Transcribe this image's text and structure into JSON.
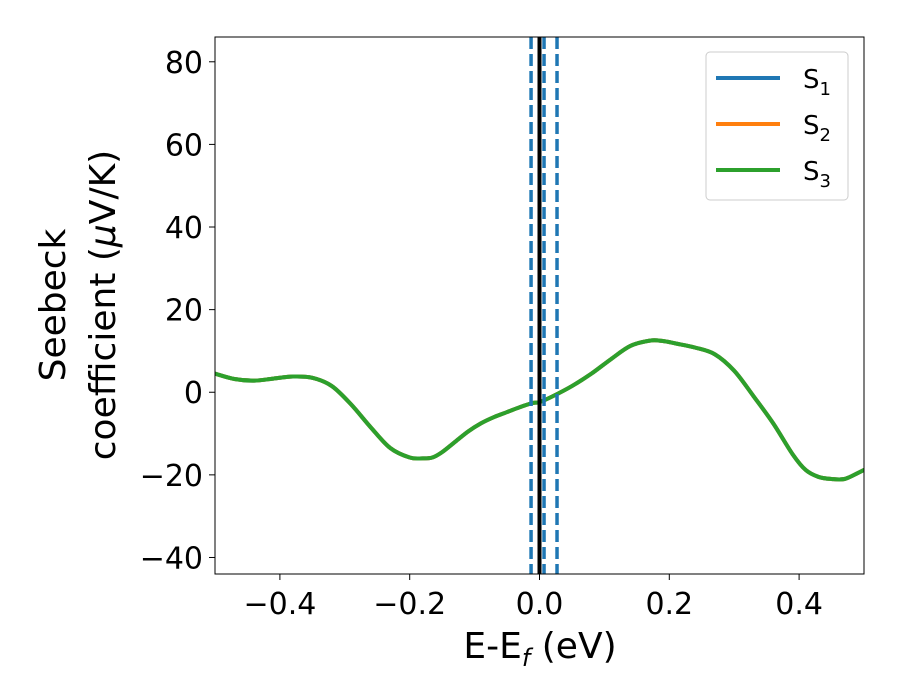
{
  "chart_data": {
    "type": "line",
    "xlabel_main": "E-E",
    "xlabel_sub": "f",
    "xlabel_unit": " (eV)",
    "ylabel_line1": "Seebeck",
    "ylabel_line2_text": "coefficient  (",
    "ylabel_mu": "μ",
    "ylabel_line2_unit": "V/K)",
    "xlim": [
      -0.5,
      0.5
    ],
    "ylim": [
      -44,
      86
    ],
    "xticks": [
      -0.4,
      -0.2,
      0.0,
      0.2,
      0.4
    ],
    "xtick_labels": [
      "−0.4",
      "−0.2",
      "0.0",
      "0.2",
      "0.4"
    ],
    "yticks": [
      -40,
      -20,
      0,
      20,
      40,
      60,
      80
    ],
    "ytick_labels": [
      "−40",
      "−20",
      "0",
      "20",
      "40",
      "60",
      "80"
    ],
    "grid": false,
    "legend_position": "top-right",
    "series": [
      {
        "name": "S",
        "sub": "1",
        "color": "#1f77b4",
        "x": [
          -0.5,
          -0.47,
          -0.44,
          -0.41,
          -0.38,
          -0.35,
          -0.32,
          -0.29,
          -0.26,
          -0.23,
          -0.2,
          -0.18,
          -0.165,
          -0.15,
          -0.13,
          -0.11,
          -0.09,
          -0.07,
          -0.05,
          -0.03,
          -0.01,
          0.0,
          0.02,
          0.05,
          0.08,
          0.11,
          0.14,
          0.17,
          0.19,
          0.21,
          0.24,
          0.27,
          0.3,
          0.33,
          0.36,
          0.39,
          0.41,
          0.43,
          0.45,
          0.47,
          0.49,
          0.5
        ],
        "y": [
          4.5,
          3.2,
          2.8,
          3.3,
          3.8,
          3.5,
          1.5,
          -3.0,
          -8.5,
          -13.5,
          -15.8,
          -16.0,
          -15.8,
          -14.5,
          -12.0,
          -9.5,
          -7.5,
          -6.0,
          -4.8,
          -3.6,
          -2.6,
          -2.4,
          -1.0,
          1.5,
          4.5,
          8.0,
          11.2,
          12.5,
          12.4,
          11.8,
          10.8,
          9.2,
          5.2,
          -1.0,
          -7.5,
          -15.0,
          -18.8,
          -20.5,
          -21.0,
          -21.0,
          -19.6,
          -18.8
        ]
      },
      {
        "name": "S",
        "sub": "2",
        "color": "#ff7f0e",
        "x": [
          -0.5,
          -0.47,
          -0.44,
          -0.41,
          -0.38,
          -0.35,
          -0.32,
          -0.29,
          -0.26,
          -0.23,
          -0.2,
          -0.18,
          -0.165,
          -0.15,
          -0.13,
          -0.11,
          -0.09,
          -0.07,
          -0.05,
          -0.03,
          -0.01,
          0.0,
          0.02,
          0.05,
          0.08,
          0.11,
          0.14,
          0.17,
          0.19,
          0.21,
          0.24,
          0.27,
          0.3,
          0.33,
          0.36,
          0.39,
          0.41,
          0.43,
          0.45,
          0.47,
          0.49,
          0.5
        ],
        "y": [
          4.5,
          3.2,
          2.8,
          3.3,
          3.8,
          3.5,
          1.5,
          -3.0,
          -8.5,
          -13.5,
          -15.8,
          -16.0,
          -15.8,
          -14.5,
          -12.0,
          -9.5,
          -7.5,
          -6.0,
          -4.8,
          -3.6,
          -2.6,
          -2.4,
          -1.0,
          1.5,
          4.5,
          8.0,
          11.2,
          12.5,
          12.4,
          11.8,
          10.8,
          9.2,
          5.2,
          -1.0,
          -7.5,
          -15.0,
          -18.8,
          -20.5,
          -21.0,
          -21.0,
          -19.6,
          -18.8
        ]
      },
      {
        "name": "S",
        "sub": "3",
        "color": "#2ca02c",
        "x": [
          -0.5,
          -0.47,
          -0.44,
          -0.41,
          -0.38,
          -0.35,
          -0.32,
          -0.29,
          -0.26,
          -0.23,
          -0.2,
          -0.18,
          -0.165,
          -0.15,
          -0.13,
          -0.11,
          -0.09,
          -0.07,
          -0.05,
          -0.03,
          -0.01,
          0.0,
          0.02,
          0.05,
          0.08,
          0.11,
          0.14,
          0.17,
          0.19,
          0.21,
          0.24,
          0.27,
          0.3,
          0.33,
          0.36,
          0.39,
          0.41,
          0.43,
          0.45,
          0.47,
          0.49,
          0.5
        ],
        "y": [
          4.5,
          3.2,
          2.8,
          3.3,
          3.8,
          3.5,
          1.5,
          -3.0,
          -8.5,
          -13.5,
          -15.8,
          -16.0,
          -15.8,
          -14.5,
          -12.0,
          -9.5,
          -7.5,
          -6.0,
          -4.8,
          -3.6,
          -2.6,
          -2.4,
          -1.0,
          1.5,
          4.5,
          8.0,
          11.2,
          12.5,
          12.4,
          11.8,
          10.8,
          9.2,
          5.2,
          -1.0,
          -7.5,
          -15.0,
          -18.8,
          -20.5,
          -21.0,
          -21.0,
          -19.6,
          -18.8
        ]
      }
    ],
    "vertical_lines": [
      {
        "x": 0.0,
        "style": "solid",
        "color": "#000000"
      },
      {
        "x": -0.013,
        "style": "dashed",
        "color": "#1f77b4"
      },
      {
        "x": 0.007,
        "style": "dashed",
        "color": "#1f77b4"
      },
      {
        "x": 0.027,
        "style": "dashed",
        "color": "#1f77b4"
      }
    ]
  }
}
